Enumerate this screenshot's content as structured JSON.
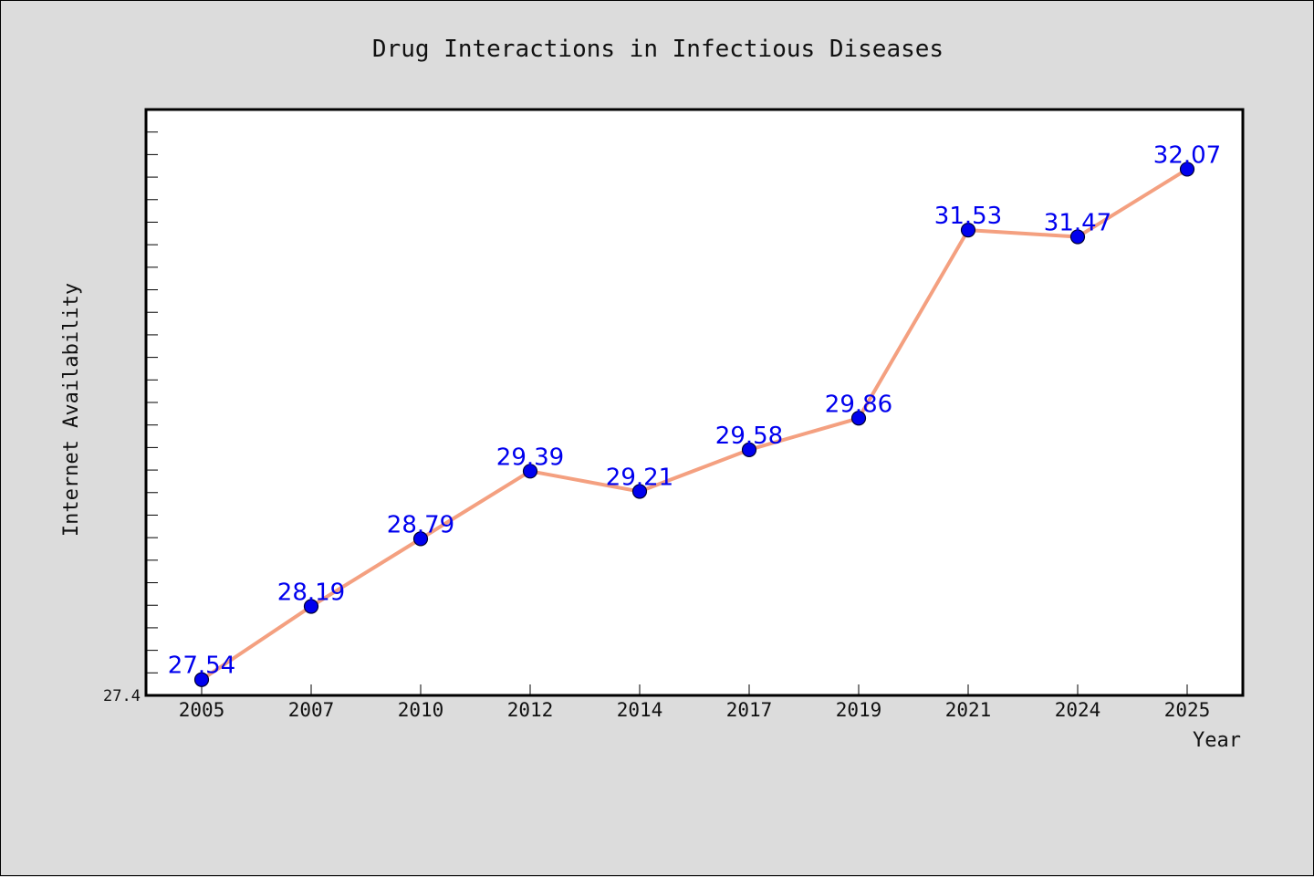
{
  "chart_data": {
    "type": "line",
    "title": "Drug Interactions in Infectious Diseases",
    "xlabel": "Year",
    "ylabel": "Internet Availability",
    "categories": [
      "2005",
      "2007",
      "2010",
      "2012",
      "2014",
      "2017",
      "2019",
      "2021",
      "2024",
      "2025"
    ],
    "series": [
      {
        "values": [
          27.54,
          28.19,
          28.79,
          29.39,
          29.21,
          29.58,
          29.86,
          31.53,
          31.47,
          32.07
        ]
      }
    ],
    "data_labels": [
      "27.54",
      "28.19",
      "28.79",
      "29.39",
      "29.21",
      "29.58",
      "29.86",
      "31.53",
      "31.47",
      "32.07"
    ],
    "ylim": [
      27.4,
      32.6
    ],
    "yticks_labeled": [
      "27.4"
    ],
    "grid": false,
    "legend": "none",
    "colors": {
      "line": "#f4a080",
      "marker": "#0000ee",
      "marker_edge": "#000033",
      "data_label": "#0000ee",
      "plot_background": "#ffffff",
      "figure_background": "#dcdcdc"
    }
  }
}
